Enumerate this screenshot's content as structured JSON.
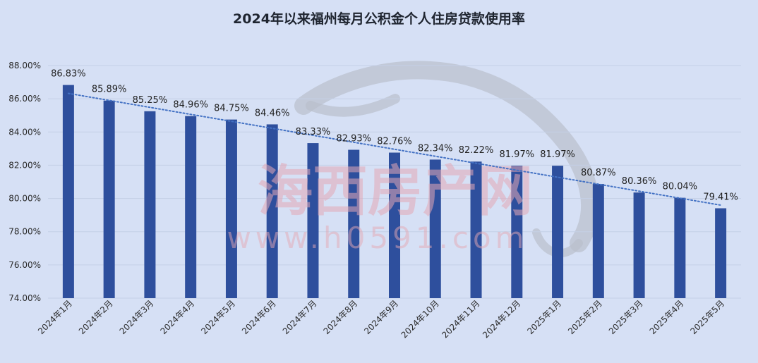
{
  "chart_data": {
    "type": "bar",
    "title": "2024年以来福州每月公积金个人住房贷款使用率",
    "categories": [
      "2024年1月",
      "2024年2月",
      "2024年3月",
      "2024年4月",
      "2024年5月",
      "2024年6月",
      "2024年7月",
      "2024年8月",
      "2024年9月",
      "2024年10月",
      "2024年11月",
      "2024年12月",
      "2025年1月",
      "2025年2月",
      "2025年3月",
      "2025年4月",
      "2025年5月"
    ],
    "values": [
      86.83,
      85.89,
      85.25,
      84.96,
      84.75,
      84.46,
      83.33,
      82.93,
      82.76,
      82.34,
      82.22,
      81.97,
      81.97,
      80.87,
      80.36,
      80.04,
      79.41
    ],
    "value_labels": [
      "86.83%",
      "85.89%",
      "85.25%",
      "84.96%",
      "84.75%",
      "84.46%",
      "83.33%",
      "82.93%",
      "82.76%",
      "82.34%",
      "82.22%",
      "81.97%",
      "81.97%",
      "80.87%",
      "80.36%",
      "80.04%",
      "79.41%"
    ],
    "y_ticks": [
      "74.00%",
      "76.00%",
      "78.00%",
      "80.00%",
      "82.00%",
      "84.00%",
      "86.00%",
      "88.00%"
    ],
    "ylim": [
      74,
      88
    ],
    "xlabel": "",
    "ylabel": "",
    "grid": true,
    "trendline": "linear, dotted",
    "legend": "none",
    "colors": {
      "bar": "#2e4f9d",
      "trend": "#4472c4",
      "grid": "#c4cfe6",
      "background": "#d6e0f5"
    }
  },
  "watermark": {
    "text": "海西房产网",
    "url": "www.h0591.com"
  }
}
